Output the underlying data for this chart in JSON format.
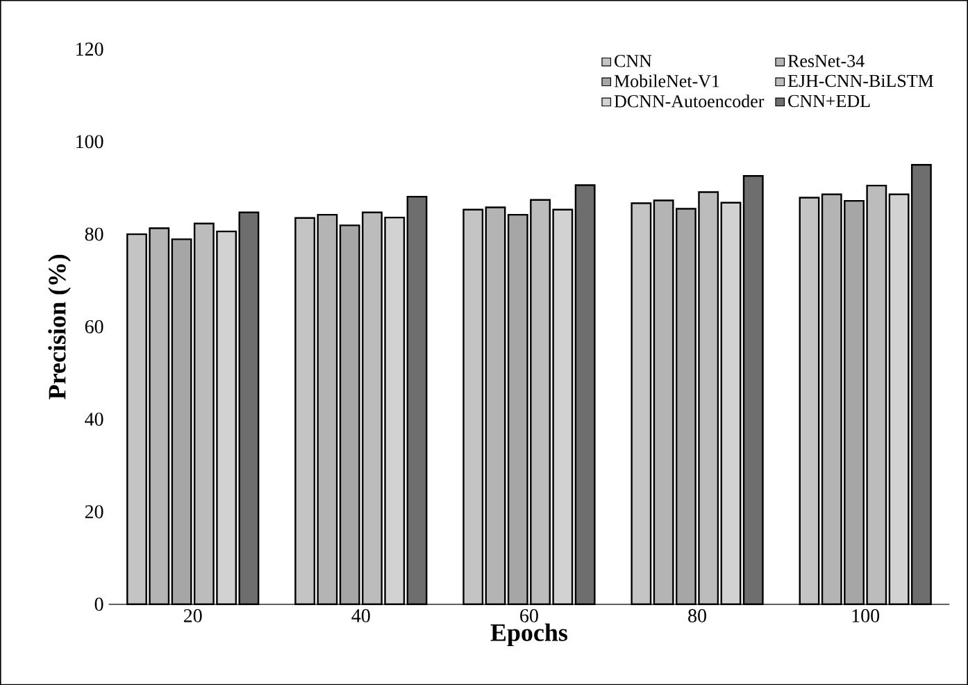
{
  "chart_data": {
    "type": "bar",
    "xlabel": "Epochs",
    "ylabel": "Precision (%)",
    "categories": [
      "20",
      "40",
      "60",
      "80",
      "100"
    ],
    "series": [
      {
        "name": "CNN",
        "color": "#c4c4c4",
        "values": [
          80.0,
          83.5,
          85.3,
          86.7,
          87.9
        ]
      },
      {
        "name": "ResNet-34",
        "color": "#b4b4b4",
        "values": [
          81.3,
          84.2,
          85.8,
          87.3,
          88.6
        ]
      },
      {
        "name": "MobileNet-V1",
        "color": "#a6a6a6",
        "values": [
          78.9,
          81.9,
          84.2,
          85.5,
          87.2
        ]
      },
      {
        "name": "EJH-CNN-BiLSTM",
        "color": "#bcbcbc",
        "values": [
          82.3,
          84.7,
          87.4,
          89.1,
          90.5
        ]
      },
      {
        "name": "DCNN-Autoencoder",
        "color": "#d2d2d2",
        "values": [
          80.6,
          83.6,
          85.3,
          86.8,
          88.6
        ]
      },
      {
        "name": "CNN+EDL",
        "color": "#6e6e6e",
        "values": [
          84.7,
          88.1,
          90.6,
          92.6,
          95.0
        ]
      }
    ],
    "ylim": [
      0,
      120
    ],
    "yticks": [
      0,
      20,
      40,
      60,
      80,
      100,
      120
    ],
    "grid": false,
    "legend": "top right"
  }
}
